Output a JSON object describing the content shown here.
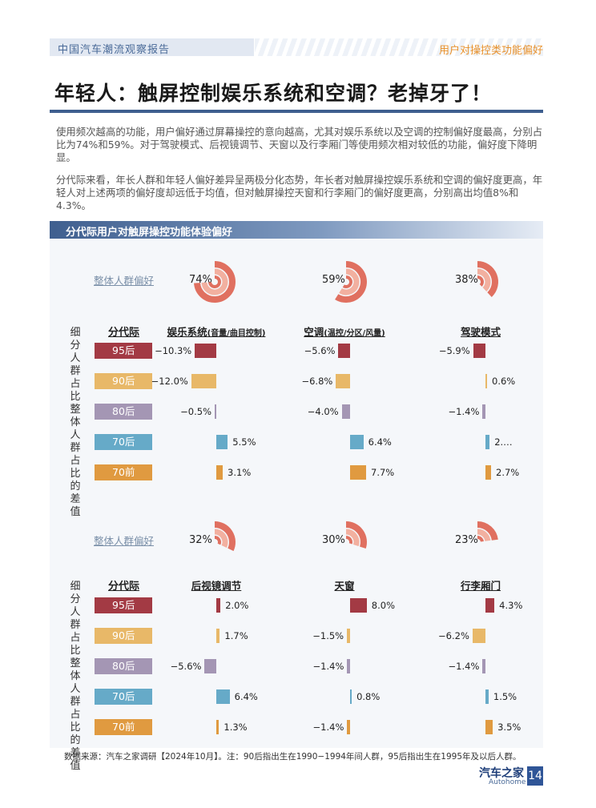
{
  "header": {
    "report": "中国汽车潮流观察报告",
    "section": "用户对操控类功能偏好"
  },
  "title": "年轻人：触屏控制娱乐系统和空调？老掉牙了！",
  "paragraphs": [
    "使用频次越高的功能，用户偏好通过屏幕操控的意向越高，尤其对娱乐系统以及空调的控制偏好度最高，分别占比为74%和59%。对于驾驶模式、后视镜调节、天窗以及行李厢门等使用频次相对较低的功能，偏好度下降明显。",
    "分代际来看，年长人群和年轻人偏好差异呈两极分化态势，年长者对触屏操控娱乐系统和空调的偏好度更高，年轻人对上述两项的偏好度却远低于均值，但对触屏操控天窗和行李厢门的偏好度更高，分别高出均值8%和4.3%。"
  ],
  "section_title": "分代际用户对触屏操控功能体验偏好",
  "overall_label": "整体人群偏好",
  "generation_header": "分代际",
  "side_label": "细分人群占比整体人群占比的差值",
  "source": "数据来源：汽车之家调研【2024年10月】。注：90后指出生在1990−1994年间人群，95后指出生在1995年及以后人群。",
  "footer": {
    "logo": "汽车之家",
    "logo_en": "Autohome",
    "page": "14"
  },
  "colors": {
    "95后": "#a33a44",
    "90后": "#e8b868",
    "80后": "#a496b4",
    "70后": "#66aac8",
    "70前": "#e09a40",
    "gauge": "#e07060",
    "gauge_light": "#f2b0a0"
  },
  "chart_data": {
    "type": "bar",
    "title": "分代际用户对触屏操控功能体验偏好",
    "ylabel": "细分人群占比整体人群占比的差值",
    "categories": [
      "95后",
      "90后",
      "80后",
      "70后",
      "70前"
    ],
    "series": [
      {
        "name": "娱乐系统",
        "sub": "(音量/曲目控制)",
        "overall": "74%",
        "overall_value": 74,
        "values": [
          -10.3,
          -12.0,
          -0.5,
          5.5,
          3.1
        ],
        "labels": [
          "−10.3%",
          "−12.0%",
          "−0.5%",
          "5.5%",
          "3.1%"
        ]
      },
      {
        "name": "空调",
        "sub": "(温控/分区/风量)",
        "overall": "59%",
        "overall_value": 59,
        "values": [
          -5.6,
          -6.8,
          -4.0,
          6.4,
          7.7
        ],
        "labels": [
          "−5.6%",
          "−6.8%",
          "−4.0%",
          "6.4%",
          "7.7%"
        ]
      },
      {
        "name": "驾驶模式",
        "sub": "",
        "overall": "38%",
        "overall_value": 38,
        "values": [
          -5.9,
          0.6,
          -1.4,
          2.0,
          2.7
        ],
        "labels": [
          "−5.9%",
          "0.6%",
          "−1.4%",
          "2.…",
          "2.7%"
        ]
      },
      {
        "name": "后视镜调节",
        "sub": "",
        "overall": "32%",
        "overall_value": 32,
        "values": [
          2.0,
          1.7,
          -5.6,
          6.4,
          1.3
        ],
        "labels": [
          "2.0%",
          "1.7%",
          "−5.6%",
          "6.4%",
          "1.3%"
        ]
      },
      {
        "name": "天窗",
        "sub": "",
        "overall": "30%",
        "overall_value": 30,
        "values": [
          8.0,
          -1.5,
          -1.4,
          0.8,
          -1.4
        ],
        "labels": [
          "8.0%",
          "−1.5%",
          "−1.4%",
          "0.8%",
          "−1.4%"
        ]
      },
      {
        "name": "行李厢门",
        "sub": "",
        "overall": "23%",
        "overall_value": 23,
        "values": [
          4.3,
          -6.2,
          -1.4,
          1.5,
          3.5
        ],
        "labels": [
          "4.3%",
          "−6.2%",
          "−1.4%",
          "1.5%",
          "3.5%"
        ]
      }
    ]
  }
}
